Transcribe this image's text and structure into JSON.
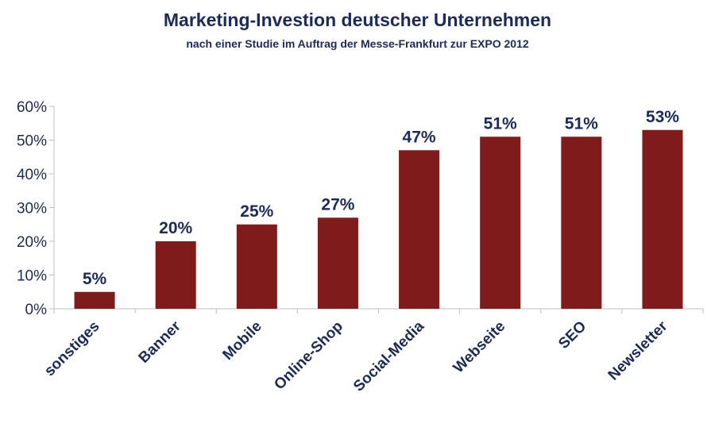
{
  "chart_data": {
    "type": "bar",
    "title": "Marketing-Investion deutscher Unternehmen",
    "subtitle": "nach einer Studie im Auftrag der Messe-Frankfurt zur EXPO 2012",
    "categories": [
      "sonstiges",
      "Banner",
      "Mobile",
      "Online-Shop",
      "Social-Media",
      "Webseite",
      "SEO",
      "Newsletter"
    ],
    "values": [
      5,
      20,
      25,
      27,
      47,
      51,
      51,
      53
    ],
    "data_labels": [
      "5%",
      "20%",
      "25%",
      "27%",
      "47%",
      "51%",
      "51%",
      "53%"
    ],
    "y_ticks": [
      "0%",
      "10%",
      "20%",
      "30%",
      "40%",
      "50%",
      "60%"
    ],
    "ylim": [
      0,
      60
    ],
    "grid": false,
    "legend": "none",
    "bar_color": "#7f1b1b",
    "text_color": "#1a2a5c",
    "axis_color": "#bfbfbf"
  }
}
